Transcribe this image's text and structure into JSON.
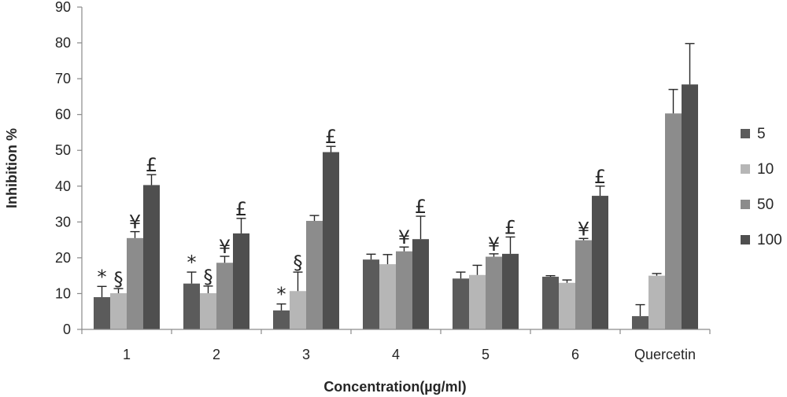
{
  "chart_data": {
    "type": "bar",
    "title": "",
    "xlabel": "Concentration(µg/ml)",
    "ylabel": "Inhibition %",
    "ylim": [
      0,
      90
    ],
    "yticks": [
      0,
      10,
      20,
      30,
      40,
      50,
      60,
      70,
      80,
      90
    ],
    "categories": [
      "1",
      "2",
      "3",
      "4",
      "5",
      "6",
      "Quercetin"
    ],
    "grid": false,
    "legend_position": "right",
    "series": [
      {
        "name": "5",
        "color": "#5b5b5b",
        "values": [
          9,
          12.8,
          5.3,
          19.5,
          14.2,
          14.7,
          3.7
        ],
        "errors": [
          3,
          3.2,
          1.8,
          1.5,
          1.8,
          0.3,
          3.2
        ],
        "marks": [
          "*",
          "*",
          "*",
          "",
          "",
          "",
          ""
        ]
      },
      {
        "name": "10",
        "color": "#b6b6b6",
        "values": [
          10.1,
          10.1,
          10.7,
          18.2,
          15.2,
          13,
          15
        ],
        "errors": [
          1.3,
          2,
          5.3,
          2.7,
          2.7,
          0.8,
          0.6
        ],
        "marks": [
          "§",
          "§",
          "§",
          "",
          "",
          "",
          ""
        ]
      },
      {
        "name": "50",
        "color": "#8c8c8c",
        "values": [
          25.5,
          18.6,
          30.3,
          21.8,
          20.3,
          24.9,
          60.3
        ],
        "errors": [
          1.8,
          1.8,
          1.5,
          1.2,
          0.8,
          0.5,
          6.7
        ],
        "marks": [
          "¥",
          "¥",
          "",
          "¥",
          "¥",
          "¥",
          ""
        ]
      },
      {
        "name": "100",
        "color": "#4f4f4f",
        "values": [
          40.3,
          26.8,
          49.5,
          25.2,
          21.1,
          37.3,
          68.4
        ],
        "errors": [
          2.9,
          4.2,
          1.6,
          6.4,
          4.7,
          2.7,
          11.4
        ],
        "marks": [
          "£",
          "£",
          "£",
          "£",
          "£",
          "£",
          ""
        ]
      }
    ]
  }
}
